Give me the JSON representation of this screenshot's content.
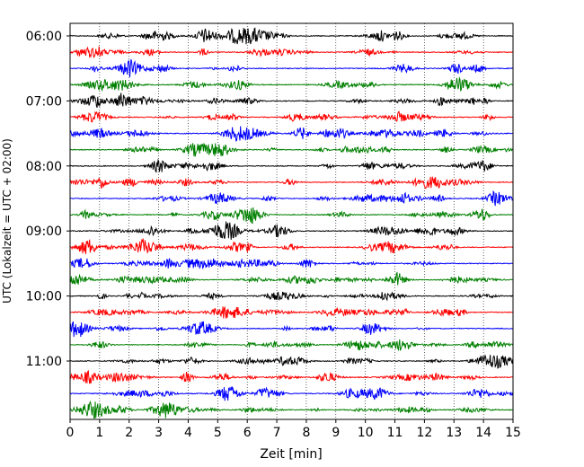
{
  "chart_data": {
    "type": "line",
    "title": "",
    "xlabel": "Zeit  [min]",
    "ylabel": "UTC (Lokalzeit = UTC + 02:00)",
    "xlim": [
      0,
      15
    ],
    "x_ticks": [
      "0",
      "1",
      "2",
      "3",
      "4",
      "5",
      "6",
      "7",
      "8",
      "9",
      "10",
      "11",
      "12",
      "13",
      "14",
      "15"
    ],
    "y_ticks": [
      "06:00",
      "07:00",
      "08:00",
      "09:00",
      "10:00",
      "11:00"
    ],
    "grid": "vertical dotted",
    "row_colors": [
      "#000000",
      "#ff0000",
      "#0000ff",
      "#008000"
    ],
    "traces": [
      {
        "start": "06:00",
        "color": "#000000"
      },
      {
        "start": "06:15",
        "color": "#ff0000"
      },
      {
        "start": "06:30",
        "color": "#0000ff"
      },
      {
        "start": "06:45",
        "color": "#008000"
      },
      {
        "start": "07:00",
        "color": "#000000"
      },
      {
        "start": "07:15",
        "color": "#ff0000"
      },
      {
        "start": "07:30",
        "color": "#0000ff"
      },
      {
        "start": "07:45",
        "color": "#008000"
      },
      {
        "start": "08:00",
        "color": "#000000"
      },
      {
        "start": "08:15",
        "color": "#ff0000"
      },
      {
        "start": "08:30",
        "color": "#0000ff"
      },
      {
        "start": "08:45",
        "color": "#008000"
      },
      {
        "start": "09:00",
        "color": "#000000"
      },
      {
        "start": "09:15",
        "color": "#ff0000"
      },
      {
        "start": "09:30",
        "color": "#0000ff"
      },
      {
        "start": "09:45",
        "color": "#008000"
      },
      {
        "start": "10:00",
        "color": "#000000"
      },
      {
        "start": "10:15",
        "color": "#ff0000"
      },
      {
        "start": "10:30",
        "color": "#0000ff"
      },
      {
        "start": "10:45",
        "color": "#008000"
      },
      {
        "start": "11:00",
        "color": "#000000"
      },
      {
        "start": "11:15",
        "color": "#ff0000"
      },
      {
        "start": "11:30",
        "color": "#0000ff"
      },
      {
        "start": "11:45",
        "color": "#008000"
      }
    ]
  }
}
